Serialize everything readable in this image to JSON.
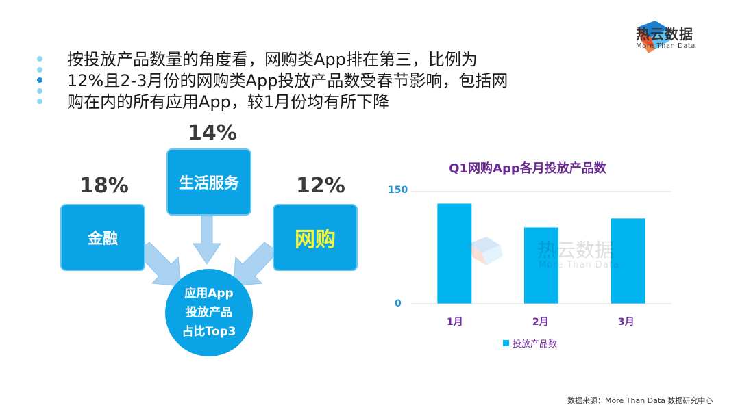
{
  "brand": {
    "name": "热云数据",
    "tagline": "More Than Data"
  },
  "bullets": [
    "按投放产品数量的角度看，网购类App排在第三，比例为",
    "12%且2-3月份的网购类App投放产品数受春节影响，包括网",
    "购在内的所有应用App，较1月份均有所下降"
  ],
  "diagram": {
    "categories": [
      {
        "label": "金融",
        "percent": "18%"
      },
      {
        "label": "生活服务",
        "percent": "14%"
      },
      {
        "label": "网购",
        "percent": "12%"
      }
    ],
    "center": {
      "line1": "应用App",
      "line2": "投放产品",
      "line3": "占比Top3"
    },
    "box_color": "#0aa3e6",
    "highlight_color": "#f5f53a"
  },
  "chart_data": {
    "type": "bar",
    "title": "Q1网购App各月投放产品数",
    "categories": [
      "1月",
      "2月",
      "3月"
    ],
    "series": [
      {
        "name": "投放产品数",
        "values": [
          134,
          102,
          114
        ]
      }
    ],
    "ylim": [
      0,
      150
    ],
    "yticks": [
      "150",
      "0"
    ],
    "grid": true,
    "legend": "bottom",
    "bar_color": "#00b4f0"
  },
  "footer": "数据来源：More Than Data 数据研究中心"
}
